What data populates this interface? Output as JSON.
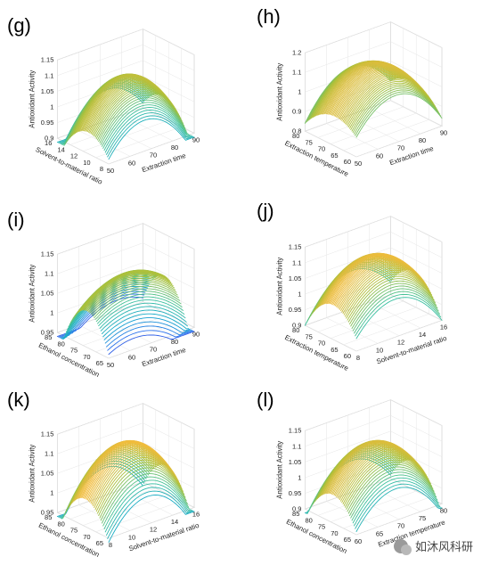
{
  "chart_data": [
    {
      "panel": "(g)",
      "type": "surface",
      "zlabel": "Antioxidant Activity",
      "zlim": [
        0.9,
        1.15
      ],
      "zticks": [
        0.9,
        0.95,
        1,
        1.05,
        1.1,
        1.15
      ],
      "xlabel": "Extraction time",
      "xlim": [
        50,
        90
      ],
      "xticks": [
        50,
        60,
        70,
        80,
        90
      ],
      "ylabel": "Solvent-to-material ratio",
      "ylim": [
        8,
        16
      ],
      "yticks": [
        8,
        10,
        12,
        14,
        16
      ],
      "model": {
        "zc": 1.085,
        "xc": 70,
        "yc": 12,
        "ax": 0.12,
        "ay": 0.09,
        "axy": 0.04
      }
    },
    {
      "panel": "(h)",
      "type": "surface",
      "zlabel": "Antioxidant Activity",
      "zlim": [
        0.8,
        1.2
      ],
      "zticks": [
        0.8,
        0.9,
        1,
        1.1,
        1.2
      ],
      "xlabel": "Extraction time",
      "xlim": [
        50,
        90
      ],
      "xticks": [
        50,
        60,
        70,
        80,
        90
      ],
      "ylabel": "Extraction temperature",
      "ylim": [
        60,
        80
      ],
      "yticks": [
        60,
        65,
        70,
        75,
        80
      ],
      "model": {
        "zc": 1.12,
        "xc": 70,
        "yc": 70,
        "ax": 0.17,
        "ay": 0.08,
        "axy": 0.03
      }
    },
    {
      "panel": "(i)",
      "type": "surface",
      "zlabel": "Antioxidant Activity",
      "zlim": [
        0.95,
        1.15
      ],
      "zticks": [
        0.95,
        1,
        1.05,
        1.1,
        1.15
      ],
      "xlabel": "Extraction time",
      "xlim": [
        50,
        90
      ],
      "xticks": [
        50,
        60,
        70,
        80,
        90
      ],
      "ylabel": "Ethanol concentration",
      "ylim": [
        65,
        85
      ],
      "yticks": [
        65,
        70,
        75,
        80,
        85
      ],
      "model": {
        "zc": 1.09,
        "xc": 70,
        "yc": 75,
        "ax": 0.05,
        "ay": 0.12,
        "axy": 0.04
      }
    },
    {
      "panel": "(j)",
      "type": "surface",
      "zlabel": "Antioxidant Activity",
      "zlim": [
        0.9,
        1.15
      ],
      "zticks": [
        0.9,
        0.95,
        1,
        1.05,
        1.1,
        1.15
      ],
      "xlabel": "Solvent-to-material ratio",
      "xlim": [
        8,
        16
      ],
      "xticks": [
        8,
        10,
        12,
        14,
        16
      ],
      "ylabel": "Extraction temperature",
      "ylim": [
        60,
        80
      ],
      "yticks": [
        60,
        65,
        70,
        75,
        80
      ],
      "model": {
        "zc": 1.11,
        "xc": 12,
        "yc": 70,
        "ax": 0.1,
        "ay": 0.09,
        "axy": 0.02
      }
    },
    {
      "panel": "(k)",
      "type": "surface",
      "zlabel": "Antioxidant Activity",
      "zlim": [
        0.95,
        1.15
      ],
      "zticks": [
        0.95,
        1,
        1.05,
        1.1,
        1.15
      ],
      "xlabel": "Solvent-to-material ratio",
      "xlim": [
        8,
        16
      ],
      "xticks": [
        8,
        10,
        12,
        14,
        16
      ],
      "ylabel": "Ethanol concentration",
      "ylim": [
        65,
        85
      ],
      "yticks": [
        65,
        70,
        75,
        80,
        85
      ],
      "model": {
        "zc": 1.12,
        "xc": 12,
        "yc": 75,
        "ax": 0.1,
        "ay": 0.1,
        "axy": 0.02
      }
    },
    {
      "panel": "(l)",
      "type": "surface",
      "zlabel": "Antioxidant Activity",
      "zlim": [
        0.9,
        1.15
      ],
      "zticks": [
        0.9,
        0.95,
        1,
        1.05,
        1.1,
        1.15
      ],
      "xlabel": "Extraction temperature",
      "xlim": [
        60,
        80
      ],
      "xticks": [
        60,
        65,
        70,
        75,
        80
      ],
      "ylabel": "Ethanol concentration",
      "ylim": [
        65,
        85
      ],
      "yticks": [
        65,
        70,
        75,
        80,
        85
      ],
      "model": {
        "zc": 1.1,
        "xc": 70,
        "yc": 75,
        "ax": 0.11,
        "ay": 0.1,
        "axy": 0.02
      }
    }
  ],
  "watermark": {
    "text": "如沐风科研",
    "icon": "wechat-icon"
  },
  "colormap": [
    "#3e26a8",
    "#2f6cf3",
    "#12a7cc",
    "#3fc29c",
    "#a8c03b",
    "#fbbb3c",
    "#f9f90e"
  ]
}
